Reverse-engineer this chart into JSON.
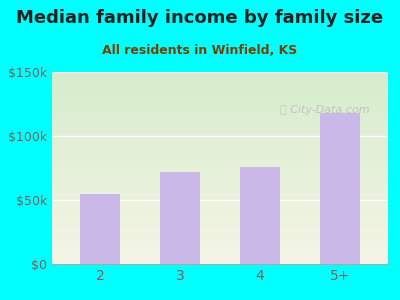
{
  "title": "Median family income by family size",
  "subtitle": "All residents in Winfield, KS",
  "categories": [
    "2",
    "3",
    "4",
    "5+"
  ],
  "values": [
    55000,
    72000,
    76000,
    118000
  ],
  "bar_color": "#C9B8E8",
  "ylim": [
    0,
    150000
  ],
  "yticks": [
    0,
    50000,
    100000,
    150000
  ],
  "ytick_labels": [
    "$0",
    "$50k",
    "$100k",
    "$150k"
  ],
  "background_outer": "#00FFFF",
  "grad_top": "#d6edcd",
  "grad_bottom": "#f5f5e5",
  "title_color": "#222222",
  "subtitle_color": "#7B3F00",
  "tick_color": "#7a6060",
  "watermark": "City-Data.com",
  "title_fontsize": 13,
  "subtitle_fontsize": 9
}
